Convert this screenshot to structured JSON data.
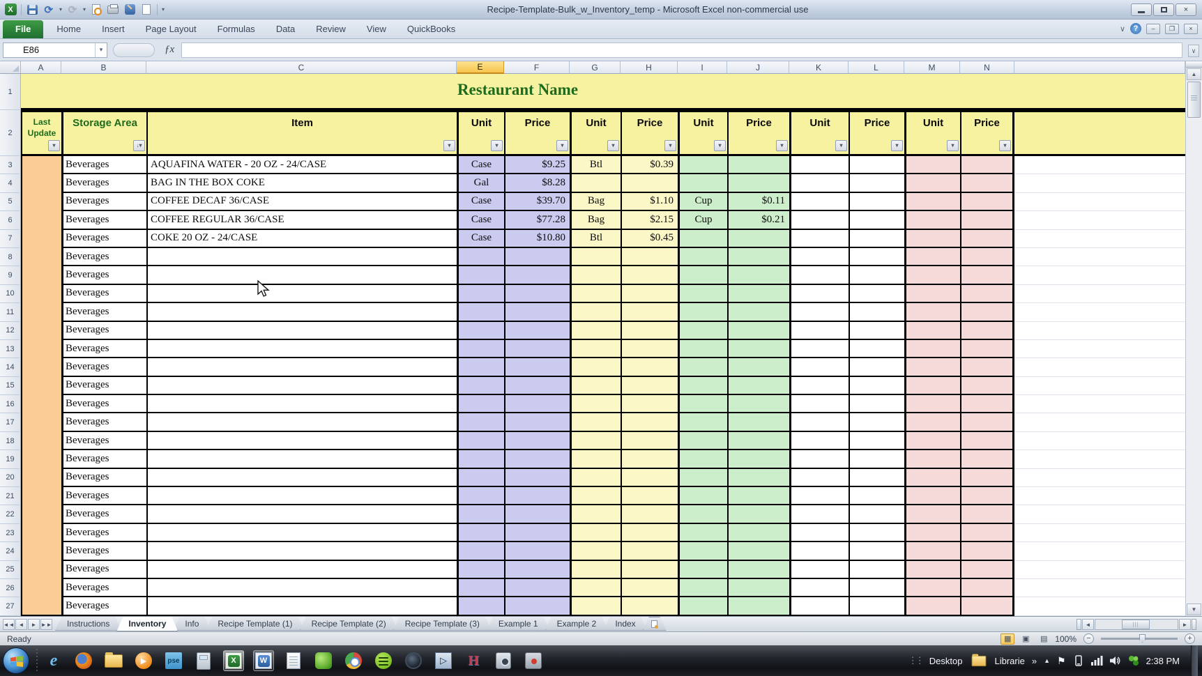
{
  "window": {
    "title": "Recipe-Template-Bulk_w_Inventory_temp  -  Microsoft Excel non-commercial use"
  },
  "qat": {
    "icons": [
      "excel-logo",
      "save",
      "undo",
      "redo",
      "print-preview",
      "quick-print",
      "edit-tool",
      "new-document",
      "customize-qat"
    ]
  },
  "ribbon": {
    "tabs": [
      "File",
      "Home",
      "Insert",
      "Page Layout",
      "Formulas",
      "Data",
      "Review",
      "View",
      "QuickBooks"
    ]
  },
  "formula_bar": {
    "name_box": "E86",
    "fx": "ƒx",
    "formula": ""
  },
  "grid": {
    "column_letters": [
      "A",
      "B",
      "C",
      "E",
      "F",
      "G",
      "H",
      "I",
      "J",
      "K",
      "L",
      "M",
      "N"
    ],
    "selected_column": "E",
    "row1_title": "Restaurant Name",
    "header_cells": [
      "Last Update",
      "Storage Area",
      "Item",
      "Unit",
      "Price",
      "Unit",
      "Price",
      "Unit",
      "Price",
      "Unit",
      "Price",
      "Unit",
      "Price"
    ],
    "rows": [
      [
        "Beverages",
        "AQUAFINA WATER - 20 OZ - 24/CASE",
        "Case",
        "$9.25",
        "Btl",
        "$0.39",
        "",
        "",
        "",
        "",
        "",
        ""
      ],
      [
        "Beverages",
        "BAG IN THE BOX COKE",
        "Gal",
        "$8.28",
        "",
        "",
        "",
        "",
        "",
        "",
        "",
        ""
      ],
      [
        "Beverages",
        "COFFEE DECAF 36/CASE",
        "Case",
        "$39.70",
        "Bag",
        "$1.10",
        "Cup",
        "$0.11",
        "",
        "",
        "",
        ""
      ],
      [
        "Beverages",
        "COFFEE REGULAR 36/CASE",
        "Case",
        "$77.28",
        "Bag",
        "$2.15",
        "Cup",
        "$0.21",
        "",
        "",
        "",
        ""
      ],
      [
        "Beverages",
        "COKE 20 OZ - 24/CASE",
        "Case",
        "$10.80",
        "Btl",
        "$0.45",
        "",
        "",
        "",
        "",
        "",
        ""
      ],
      [
        "Beverages",
        "",
        "",
        "",
        "",
        "",
        "",
        "",
        "",
        "",
        "",
        ""
      ],
      [
        "Beverages",
        "",
        "",
        "",
        "",
        "",
        "",
        "",
        "",
        "",
        "",
        ""
      ],
      [
        "Beverages",
        "",
        "",
        "",
        "",
        "",
        "",
        "",
        "",
        "",
        "",
        ""
      ],
      [
        "Beverages",
        "",
        "",
        "",
        "",
        "",
        "",
        "",
        "",
        "",
        "",
        ""
      ],
      [
        "Beverages",
        "",
        "",
        "",
        "",
        "",
        "",
        "",
        "",
        "",
        "",
        ""
      ],
      [
        "Beverages",
        "",
        "",
        "",
        "",
        "",
        "",
        "",
        "",
        "",
        "",
        ""
      ],
      [
        "Beverages",
        "",
        "",
        "",
        "",
        "",
        "",
        "",
        "",
        "",
        "",
        ""
      ],
      [
        "Beverages",
        "",
        "",
        "",
        "",
        "",
        "",
        "",
        "",
        "",
        "",
        ""
      ],
      [
        "Beverages",
        "",
        "",
        "",
        "",
        "",
        "",
        "",
        "",
        "",
        "",
        ""
      ],
      [
        "Beverages",
        "",
        "",
        "",
        "",
        "",
        "",
        "",
        "",
        "",
        "",
        ""
      ],
      [
        "Beverages",
        "",
        "",
        "",
        "",
        "",
        "",
        "",
        "",
        "",
        "",
        ""
      ],
      [
        "Beverages",
        "",
        "",
        "",
        "",
        "",
        "",
        "",
        "",
        "",
        "",
        ""
      ],
      [
        "Beverages",
        "",
        "",
        "",
        "",
        "",
        "",
        "",
        "",
        "",
        "",
        ""
      ],
      [
        "Beverages",
        "",
        "",
        "",
        "",
        "",
        "",
        "",
        "",
        "",
        "",
        ""
      ],
      [
        "Beverages",
        "",
        "",
        "",
        "",
        "",
        "",
        "",
        "",
        "",
        "",
        ""
      ],
      [
        "Beverages",
        "",
        "",
        "",
        "",
        "",
        "",
        "",
        "",
        "",
        "",
        ""
      ],
      [
        "Beverages",
        "",
        "",
        "",
        "",
        "",
        "",
        "",
        "",
        "",
        "",
        ""
      ],
      [
        "Beverages",
        "",
        "",
        "",
        "",
        "",
        "",
        "",
        "",
        "",
        "",
        ""
      ],
      [
        "Beverages",
        "",
        "",
        "",
        "",
        "",
        "",
        "",
        "",
        "",
        "",
        ""
      ],
      [
        "Beverages",
        "",
        "",
        "",
        "",
        "",
        "",
        "",
        "",
        "",
        "",
        ""
      ]
    ]
  },
  "sheet_tabs": {
    "tabs": [
      "Instructions",
      "Inventory",
      "Info",
      "Recipe Template (1)",
      "Recipe Template (2)",
      "Recipe Template (3)",
      "Example 1",
      "Example 2",
      "Index"
    ],
    "active": "Inventory"
  },
  "status_bar": {
    "mode": "Ready",
    "zoom": "100%"
  },
  "taskbar": {
    "icons": [
      "internet-explorer",
      "firefox",
      "windows-explorer",
      "media-player",
      "photoshop-elements",
      "calculator",
      "excel",
      "word",
      "notepad",
      "green-app",
      "chrome",
      "spotify",
      "dark-media-app",
      "blue-arrow-app",
      "red-h-app",
      "camera-app",
      "recorder-app"
    ],
    "open_apps": [
      "excel",
      "word"
    ],
    "active_app": "excel",
    "tray": {
      "desktop_label": "Desktop",
      "libraries_label": "Librarie",
      "overflow": "»",
      "time": "2:38 PM"
    }
  },
  "colors": {
    "header_yellow": "#f6f2a0",
    "title_green": "#1e6b1e",
    "header_green": "#1e6b1e",
    "column_peach": "#fbcd96",
    "column_lavender": "#cbcbf0",
    "column_pale_yellow": "#fbf7c6",
    "column_pale_green": "#cdeeca",
    "column_pink": "#f6dada",
    "selected_column_header": "#f6c54e",
    "file_tab_green": "#2a7d34"
  }
}
